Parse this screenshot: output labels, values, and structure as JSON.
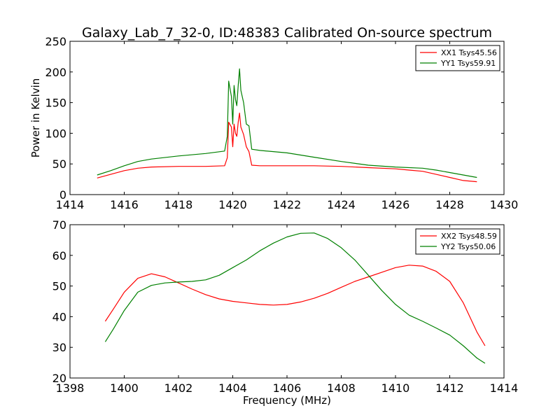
{
  "title": "Galaxy_Lab_7_32-0, ID:48383 Calibrated On-source spectrum",
  "chart_data": [
    {
      "type": "line",
      "xlabel": "",
      "ylabel": "Power in Kelvin",
      "xlim": [
        1414,
        1430
      ],
      "ylim": [
        0,
        250
      ],
      "xticks": [
        1414,
        1416,
        1418,
        1420,
        1422,
        1424,
        1426,
        1428,
        1430
      ],
      "yticks": [
        0,
        50,
        100,
        150,
        200,
        250
      ],
      "legend_position": "top-right",
      "series": [
        {
          "name": "XX1 Tsys45.56",
          "color": "#ff0000",
          "points": [
            [
              1415.0,
              27
            ],
            [
              1415.5,
              33
            ],
            [
              1416.0,
              39
            ],
            [
              1416.5,
              43
            ],
            [
              1417.0,
              45
            ],
            [
              1418.0,
              46
            ],
            [
              1419.0,
              46
            ],
            [
              1419.7,
              47
            ],
            [
              1419.8,
              60
            ],
            [
              1419.85,
              118
            ],
            [
              1419.95,
              110
            ],
            [
              1420.0,
              78
            ],
            [
              1420.05,
              115
            ],
            [
              1420.1,
              100
            ],
            [
              1420.15,
              95
            ],
            [
              1420.2,
              118
            ],
            [
              1420.25,
              133
            ],
            [
              1420.3,
              110
            ],
            [
              1420.4,
              98
            ],
            [
              1420.5,
              78
            ],
            [
              1420.6,
              70
            ],
            [
              1420.7,
              48
            ],
            [
              1421.0,
              47
            ],
            [
              1422.0,
              47
            ],
            [
              1423.0,
              47
            ],
            [
              1424.0,
              46
            ],
            [
              1425.0,
              44
            ],
            [
              1426.0,
              42
            ],
            [
              1426.5,
              40
            ],
            [
              1427.0,
              38
            ],
            [
              1427.5,
              33
            ],
            [
              1428.0,
              28
            ],
            [
              1428.5,
              23
            ],
            [
              1429.0,
              21
            ]
          ]
        },
        {
          "name": "YY1 Tsys59.91",
          "color": "#008000",
          "points": [
            [
              1415.0,
              32
            ],
            [
              1415.5,
              39
            ],
            [
              1416.0,
              47
            ],
            [
              1416.5,
              54
            ],
            [
              1417.0,
              58
            ],
            [
              1418.0,
              63
            ],
            [
              1419.0,
              67
            ],
            [
              1419.7,
              71
            ],
            [
              1419.8,
              95
            ],
            [
              1419.85,
              185
            ],
            [
              1419.95,
              160
            ],
            [
              1420.0,
              115
            ],
            [
              1420.05,
              178
            ],
            [
              1420.1,
              155
            ],
            [
              1420.15,
              145
            ],
            [
              1420.2,
              178
            ],
            [
              1420.25,
              205
            ],
            [
              1420.3,
              170
            ],
            [
              1420.4,
              150
            ],
            [
              1420.5,
              115
            ],
            [
              1420.6,
              112
            ],
            [
              1420.7,
              74
            ],
            [
              1421.0,
              72
            ],
            [
              1422.0,
              68
            ],
            [
              1423.0,
              61
            ],
            [
              1424.0,
              54
            ],
            [
              1425.0,
              48
            ],
            [
              1426.0,
              45
            ],
            [
              1427.0,
              43
            ],
            [
              1427.5,
              40
            ],
            [
              1428.0,
              36
            ],
            [
              1428.5,
              32
            ],
            [
              1429.0,
              28
            ]
          ]
        }
      ]
    },
    {
      "type": "line",
      "xlabel": "Frequency (MHz)",
      "ylabel": "",
      "xlim": [
        1398,
        1414
      ],
      "ylim": [
        20,
        70
      ],
      "xticks": [
        1398,
        1400,
        1402,
        1404,
        1406,
        1408,
        1410,
        1412,
        1414
      ],
      "yticks": [
        20,
        30,
        40,
        50,
        60,
        70
      ],
      "legend_position": "top-right",
      "series": [
        {
          "name": "XX2 Tsys48.59",
          "color": "#ff0000",
          "points": [
            [
              1399.3,
              38.5
            ],
            [
              1399.6,
              42.5
            ],
            [
              1400.0,
              48
            ],
            [
              1400.5,
              52.5
            ],
            [
              1401.0,
              54
            ],
            [
              1401.5,
              53
            ],
            [
              1402.0,
              51
            ],
            [
              1402.5,
              49
            ],
            [
              1403.0,
              47.2
            ],
            [
              1403.5,
              45.8
            ],
            [
              1404.0,
              45
            ],
            [
              1404.5,
              44.5
            ],
            [
              1405.0,
              44
            ],
            [
              1405.5,
              43.8
            ],
            [
              1406.0,
              44
            ],
            [
              1406.5,
              44.8
            ],
            [
              1407.0,
              46
            ],
            [
              1407.5,
              47.6
            ],
            [
              1408.0,
              49.6
            ],
            [
              1408.5,
              51.5
            ],
            [
              1409.0,
              53
            ],
            [
              1409.5,
              54.5
            ],
            [
              1410.0,
              56
            ],
            [
              1410.5,
              56.8
            ],
            [
              1411.0,
              56.5
            ],
            [
              1411.5,
              54.8
            ],
            [
              1412.0,
              51.5
            ],
            [
              1412.5,
              44.5
            ],
            [
              1413.0,
              35
            ],
            [
              1413.3,
              30.5
            ]
          ]
        },
        {
          "name": "YY2 Tsys50.06",
          "color": "#008000",
          "points": [
            [
              1399.3,
              31.8
            ],
            [
              1399.6,
              36
            ],
            [
              1400.0,
              42
            ],
            [
              1400.5,
              48
            ],
            [
              1401.0,
              50.2
            ],
            [
              1401.5,
              51
            ],
            [
              1402.0,
              51.3
            ],
            [
              1402.5,
              51.5
            ],
            [
              1403.0,
              52
            ],
            [
              1403.5,
              53.5
            ],
            [
              1404.0,
              56
            ],
            [
              1404.5,
              58.5
            ],
            [
              1405.0,
              61.5
            ],
            [
              1405.5,
              64
            ],
            [
              1406.0,
              66
            ],
            [
              1406.5,
              67.2
            ],
            [
              1407.0,
              67.3
            ],
            [
              1407.5,
              65.5
            ],
            [
              1408.0,
              62.5
            ],
            [
              1408.5,
              58.5
            ],
            [
              1409.0,
              53.5
            ],
            [
              1409.5,
              48.5
            ],
            [
              1410.0,
              44
            ],
            [
              1410.5,
              40.5
            ],
            [
              1411.0,
              38.5
            ],
            [
              1411.5,
              36.3
            ],
            [
              1412.0,
              34
            ],
            [
              1412.5,
              30.5
            ],
            [
              1413.0,
              26.5
            ],
            [
              1413.3,
              24.8
            ]
          ]
        }
      ]
    }
  ]
}
